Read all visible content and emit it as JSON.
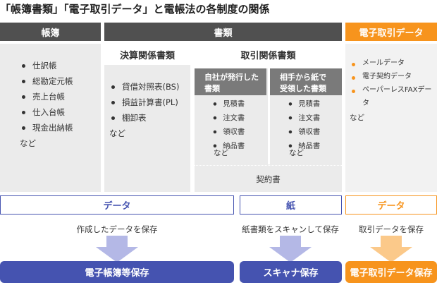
{
  "title": "「帳簿書類」「電子取引データ」と電帳法の各制度の関係",
  "columns": {
    "books": {
      "header": "帳簿",
      "items": [
        "仕訳帳",
        "総勘定元帳",
        "売上台帳",
        "仕入台帳",
        "現金出納帳"
      ],
      "etc": "など"
    },
    "documents": {
      "header": "書類",
      "settlement": {
        "header": "決算関係書類",
        "items": [
          "貸借対照表(BS)",
          "損益計算書(PL)",
          "棚卸表"
        ],
        "etc": "など"
      },
      "transaction": {
        "header": "取引関係書類",
        "issued": {
          "header": "自社が発行した書類",
          "items": [
            "見積書",
            "注文書",
            "領収書",
            "納品書"
          ],
          "etc": "など"
        },
        "received": {
          "header": "相手から紙で受領した書類",
          "items": [
            "見積書",
            "注文書",
            "領収書",
            "納品書"
          ],
          "etc": "など"
        },
        "contract": "契約書"
      }
    },
    "edata": {
      "header": "電子取引データ",
      "items": [
        "メールデータ",
        "電子契約データ",
        "ペーパーレスFAXデータ"
      ],
      "etc": "など"
    }
  },
  "flows": [
    {
      "medium": "データ",
      "action": "作成したデータを保存",
      "result": "電子帳簿等保存"
    },
    {
      "medium": "紙",
      "action": "紙書類をスキャンして保存",
      "result": "スキャナ保存"
    },
    {
      "medium": "データ",
      "action": "取引データを保存",
      "result": "電子取引データ保存"
    }
  ]
}
